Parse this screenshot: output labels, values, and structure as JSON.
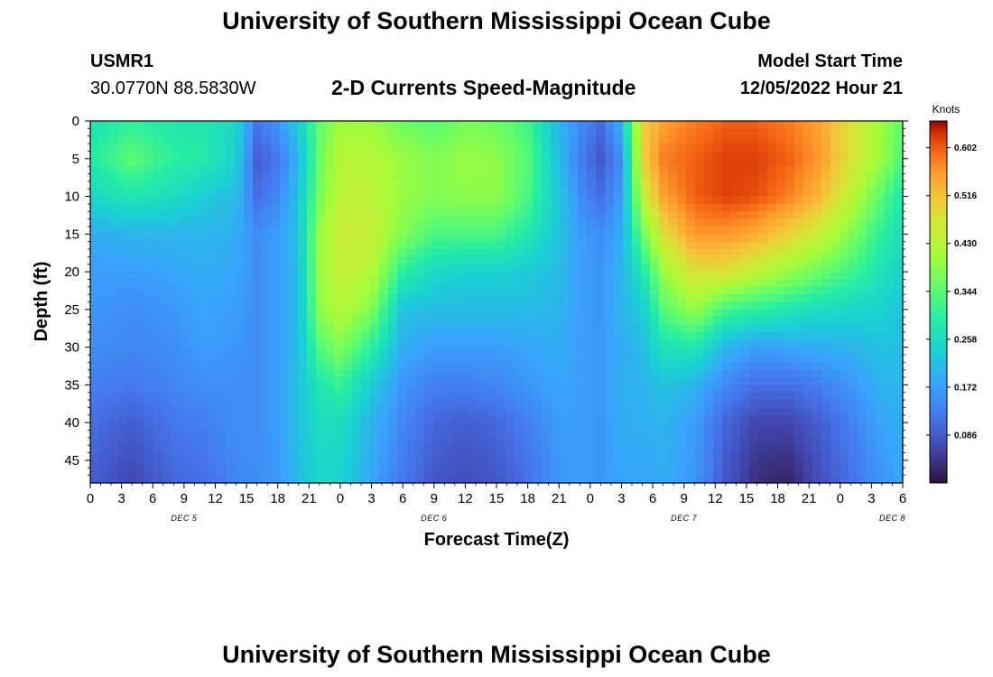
{
  "header": {
    "title": "University of Southern Mississippi Ocean Cube",
    "station_id": "USMR1",
    "coords": "30.0770N  88.5830W",
    "chart_title": "2-D Currents Speed-Magnitude",
    "model_start_label": "Model Start Time",
    "model_start_value": "12/05/2022 Hour 21"
  },
  "footer": {
    "title": "University of Southern Mississippi Ocean Cube"
  },
  "colors": {
    "low": "#30123b",
    "mid": "#7cf24a",
    "high": "#7a0403"
  },
  "chart_data": {
    "type": "heatmap",
    "xlabel": "Forecast Time(Z)",
    "ylabel": "Depth (ft)",
    "colorbar_label": "Knots",
    "x_range": [
      0,
      78
    ],
    "y_range": [
      0,
      48
    ],
    "y_reversed": true,
    "x_tick_labels": [
      "0",
      "3",
      "6",
      "9",
      "12",
      "15",
      "18",
      "21",
      "0",
      "3",
      "6",
      "9",
      "12",
      "15",
      "18",
      "21",
      "0",
      "3",
      "6",
      "9",
      "12",
      "15",
      "18",
      "21",
      "0",
      "3",
      "6"
    ],
    "y_tick_labels": [
      "0",
      "5",
      "10",
      "15",
      "20",
      "25",
      "30",
      "35",
      "40",
      "45"
    ],
    "date_labels": [
      "DEC 5",
      "DEC 6",
      "DEC 7",
      "DEC 8"
    ],
    "colorbar_range": [
      0.0,
      0.65
    ],
    "colorbar_ticks": [
      "0.086",
      "0.172",
      "0.258",
      "0.344",
      "0.430",
      "0.516",
      "0.602"
    ],
    "depth_samples_ft": [
      0,
      5,
      10,
      15,
      20,
      25,
      30,
      35,
      40,
      48
    ],
    "profiles": [
      {
        "hour": 0,
        "speeds": [
          0.27,
          0.29,
          0.25,
          0.19,
          0.17,
          0.16,
          0.15,
          0.13,
          0.11,
          0.09
        ]
      },
      {
        "hour": 4,
        "speeds": [
          0.3,
          0.35,
          0.28,
          0.2,
          0.17,
          0.15,
          0.14,
          0.12,
          0.09,
          0.06
        ]
      },
      {
        "hour": 8,
        "speeds": [
          0.28,
          0.3,
          0.26,
          0.2,
          0.18,
          0.16,
          0.15,
          0.14,
          0.12,
          0.1
        ]
      },
      {
        "hour": 11,
        "speeds": [
          0.28,
          0.29,
          0.23,
          0.2,
          0.19,
          0.18,
          0.17,
          0.15,
          0.13,
          0.11
        ]
      },
      {
        "hour": 14,
        "speeds": [
          0.25,
          0.24,
          0.21,
          0.19,
          0.18,
          0.17,
          0.16,
          0.15,
          0.15,
          0.14
        ]
      },
      {
        "hour": 16,
        "speeds": [
          0.12,
          0.09,
          0.11,
          0.15,
          0.15,
          0.15,
          0.15,
          0.15,
          0.15,
          0.15
        ]
      },
      {
        "hour": 18,
        "speeds": [
          0.16,
          0.12,
          0.14,
          0.17,
          0.17,
          0.17,
          0.17,
          0.17,
          0.17,
          0.16
        ]
      },
      {
        "hour": 20,
        "speeds": [
          0.24,
          0.2,
          0.22,
          0.22,
          0.21,
          0.21,
          0.21,
          0.22,
          0.22,
          0.21
        ]
      },
      {
        "hour": 22,
        "speeds": [
          0.35,
          0.36,
          0.37,
          0.4,
          0.4,
          0.39,
          0.34,
          0.28,
          0.26,
          0.25
        ]
      },
      {
        "hour": 24,
        "speeds": [
          0.4,
          0.44,
          0.44,
          0.46,
          0.45,
          0.43,
          0.38,
          0.31,
          0.26,
          0.24
        ]
      },
      {
        "hour": 27,
        "speeds": [
          0.4,
          0.43,
          0.44,
          0.45,
          0.43,
          0.38,
          0.3,
          0.23,
          0.2,
          0.18
        ]
      },
      {
        "hour": 30,
        "speeds": [
          0.36,
          0.4,
          0.4,
          0.38,
          0.3,
          0.22,
          0.19,
          0.16,
          0.14,
          0.12
        ]
      },
      {
        "hour": 33,
        "speeds": [
          0.34,
          0.38,
          0.38,
          0.33,
          0.25,
          0.21,
          0.17,
          0.13,
          0.1,
          0.08
        ]
      },
      {
        "hour": 36,
        "speeds": [
          0.37,
          0.4,
          0.39,
          0.33,
          0.24,
          0.21,
          0.17,
          0.13,
          0.09,
          0.07
        ]
      },
      {
        "hour": 39,
        "speeds": [
          0.36,
          0.39,
          0.39,
          0.33,
          0.24,
          0.21,
          0.17,
          0.14,
          0.1,
          0.08
        ]
      },
      {
        "hour": 42,
        "speeds": [
          0.32,
          0.34,
          0.33,
          0.28,
          0.23,
          0.21,
          0.18,
          0.16,
          0.13,
          0.11
        ]
      },
      {
        "hour": 45,
        "speeds": [
          0.2,
          0.21,
          0.22,
          0.22,
          0.21,
          0.2,
          0.19,
          0.18,
          0.17,
          0.16
        ]
      },
      {
        "hour": 47,
        "speeds": [
          0.15,
          0.13,
          0.15,
          0.17,
          0.17,
          0.17,
          0.17,
          0.17,
          0.17,
          0.17
        ]
      },
      {
        "hour": 49,
        "speeds": [
          0.11,
          0.08,
          0.11,
          0.15,
          0.16,
          0.16,
          0.16,
          0.16,
          0.16,
          0.16
        ]
      },
      {
        "hour": 51,
        "speeds": [
          0.2,
          0.15,
          0.17,
          0.19,
          0.2,
          0.2,
          0.19,
          0.19,
          0.19,
          0.18
        ]
      },
      {
        "hour": 53,
        "speeds": [
          0.5,
          0.5,
          0.44,
          0.36,
          0.28,
          0.23,
          0.21,
          0.2,
          0.19,
          0.18
        ]
      },
      {
        "hour": 55,
        "speeds": [
          0.55,
          0.58,
          0.55,
          0.48,
          0.4,
          0.34,
          0.27,
          0.22,
          0.2,
          0.19
        ]
      },
      {
        "hour": 58,
        "speeds": [
          0.58,
          0.6,
          0.6,
          0.56,
          0.48,
          0.4,
          0.28,
          0.2,
          0.17,
          0.16
        ]
      },
      {
        "hour": 61,
        "speeds": [
          0.6,
          0.62,
          0.62,
          0.56,
          0.48,
          0.32,
          0.2,
          0.14,
          0.1,
          0.08
        ]
      },
      {
        "hour": 64,
        "speeds": [
          0.6,
          0.62,
          0.61,
          0.54,
          0.44,
          0.3,
          0.17,
          0.11,
          0.06,
          0.03
        ]
      },
      {
        "hour": 67,
        "speeds": [
          0.58,
          0.6,
          0.58,
          0.5,
          0.4,
          0.28,
          0.18,
          0.11,
          0.06,
          0.02
        ]
      },
      {
        "hour": 70,
        "speeds": [
          0.55,
          0.56,
          0.53,
          0.45,
          0.36,
          0.26,
          0.19,
          0.13,
          0.09,
          0.07
        ]
      },
      {
        "hour": 73,
        "speeds": [
          0.48,
          0.48,
          0.44,
          0.38,
          0.32,
          0.25,
          0.2,
          0.16,
          0.13,
          0.11
        ]
      },
      {
        "hour": 76,
        "speeds": [
          0.4,
          0.4,
          0.34,
          0.3,
          0.27,
          0.24,
          0.22,
          0.2,
          0.18,
          0.16
        ]
      },
      {
        "hour": 78,
        "speeds": [
          0.35,
          0.33,
          0.28,
          0.26,
          0.24,
          0.22,
          0.21,
          0.2,
          0.19,
          0.18
        ]
      }
    ]
  }
}
